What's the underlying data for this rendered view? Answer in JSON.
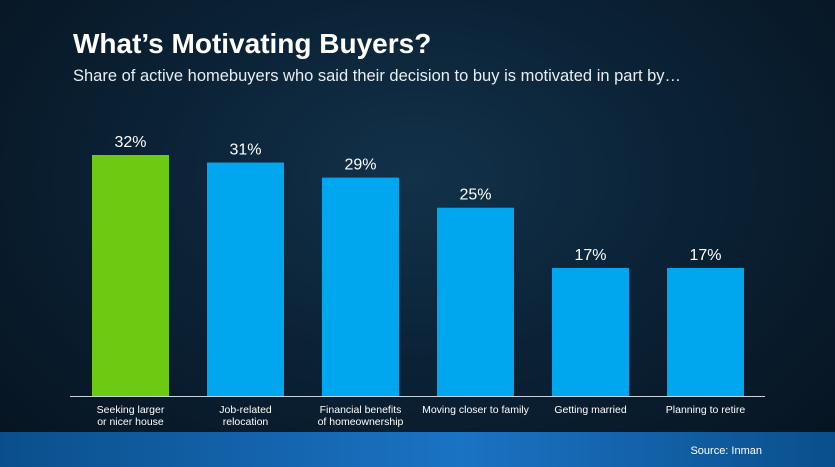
{
  "title": "What’s Motivating Buyers?",
  "subtitle": "Share of active homebuyers who said their decision to buy is motivated in part by…",
  "source": "Source: Inman",
  "colors": {
    "highlight": "#6dca12",
    "bar": "#00a6ee",
    "axis": "#c9d3db",
    "label": "#ffffff"
  },
  "chart_data": {
    "type": "bar",
    "categories": [
      [
        "Seeking larger",
        "or nicer house"
      ],
      [
        "Job-related",
        "relocation"
      ],
      [
        "Financial benefits",
        "of homeownership"
      ],
      [
        "Moving closer to family"
      ],
      [
        "Getting married"
      ],
      [
        "Planning to retire"
      ]
    ],
    "values": [
      32,
      31,
      29,
      25,
      17,
      17
    ],
    "value_labels": [
      "32%",
      "31%",
      "29%",
      "25%",
      "17%",
      "17%"
    ],
    "highlight_index": 0,
    "ylim": [
      0,
      32
    ],
    "grid": false,
    "legend": "none"
  }
}
